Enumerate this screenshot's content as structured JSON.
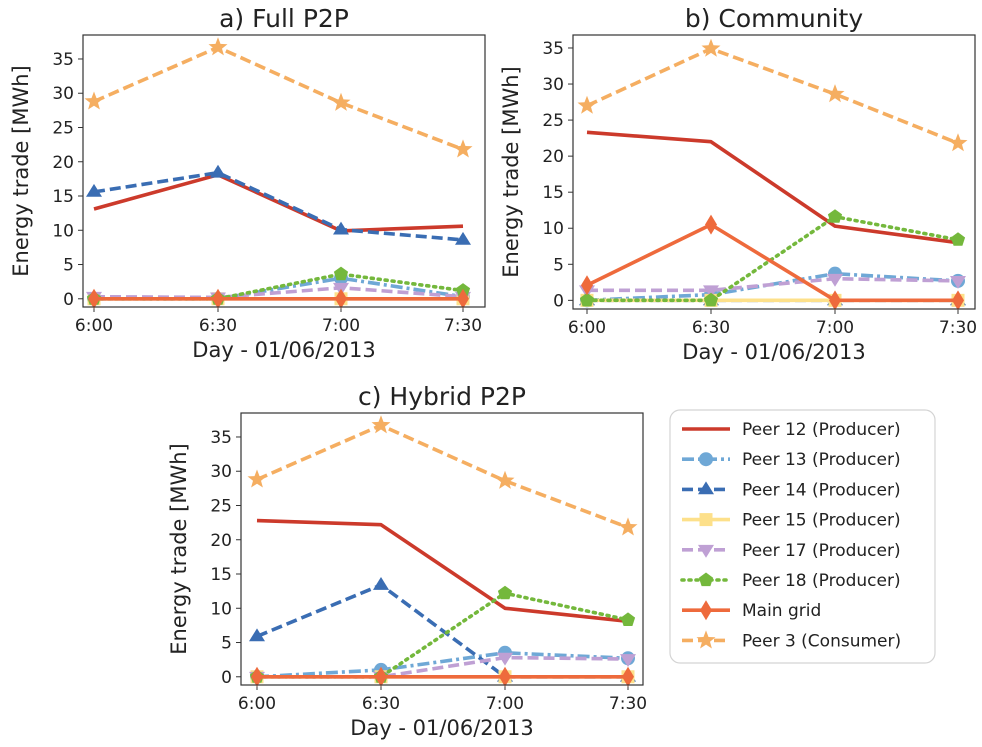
{
  "colors": {
    "peer12": "#cc3a2b",
    "peer13": "#6fa8d6",
    "peer14": "#3a6db3",
    "peer15": "#fde08a",
    "peer17": "#bfa0d4",
    "peer18": "#74b83c",
    "grid": "#ee6a3c",
    "peer3": "#f5ae61"
  },
  "legend": {
    "placement": "lower-right",
    "entries": [
      {
        "label": "Peer 12 (Producer)",
        "color": "#cc3a2b",
        "dash": "solid",
        "marker": "none"
      },
      {
        "label": "Peer 13 (Producer)",
        "color": "#6fa8d6",
        "dash": "dashdot",
        "marker": "circle"
      },
      {
        "label": "Peer 14 (Producer)",
        "color": "#3a6db3",
        "dash": "dashed",
        "marker": "triangle-up"
      },
      {
        "label": "Peer 15 (Producer)",
        "color": "#fde08a",
        "dash": "solid",
        "marker": "square"
      },
      {
        "label": "Peer 17 (Producer)",
        "color": "#bfa0d4",
        "dash": "dashed",
        "marker": "triangle-down"
      },
      {
        "label": "Peer 18 (Producer)",
        "color": "#74b83c",
        "dash": "dotted",
        "marker": "pentagon"
      },
      {
        "label": "Main grid",
        "color": "#ee6a3c",
        "dash": "solid",
        "marker": "thin-diamond"
      },
      {
        "label": "Peer 3 (Consumer)",
        "color": "#f5ae61",
        "dash": "dashed",
        "marker": "star"
      }
    ]
  },
  "chart_data": [
    {
      "type": "line",
      "title": "a) Full P2P",
      "xlabel": "Day - 01/06/2013",
      "ylabel": "Energy trade [MWh]",
      "categories": [
        "6:00",
        "6:30",
        "7:00",
        "7:30"
      ],
      "ylim": [
        -1.2,
        38.5
      ],
      "yticks": [
        0,
        5,
        10,
        15,
        20,
        25,
        30,
        35
      ],
      "series": [
        {
          "name": "Peer 12 (Producer)",
          "values": [
            13.1,
            18.1,
            9.9,
            10.6
          ]
        },
        {
          "name": "Peer 13 (Producer)",
          "values": [
            0,
            0,
            3.0,
            0.3
          ]
        },
        {
          "name": "Peer 14 (Producer)",
          "values": [
            15.6,
            18.4,
            10.1,
            8.6
          ]
        },
        {
          "name": "Peer 15 (Producer)",
          "values": [
            0,
            0,
            0,
            0
          ]
        },
        {
          "name": "Peer 17 (Producer)",
          "values": [
            0.3,
            0.2,
            1.6,
            0.3
          ]
        },
        {
          "name": "Peer 18 (Producer)",
          "values": [
            0,
            0,
            3.6,
            1.2
          ]
        },
        {
          "name": "Main grid",
          "values": [
            0,
            0,
            0,
            0
          ]
        },
        {
          "name": "Peer 3 (Consumer)",
          "values": [
            28.8,
            36.7,
            28.6,
            21.8
          ]
        }
      ]
    },
    {
      "type": "line",
      "title": "b) Community",
      "xlabel": "Day - 01/06/2013",
      "ylabel": "Energy trade [MWh]",
      "categories": [
        "6:00",
        "6:30",
        "7:00",
        "7:30"
      ],
      "ylim": [
        -1.2,
        36.8
      ],
      "yticks": [
        0,
        5,
        10,
        15,
        20,
        25,
        30,
        35
      ],
      "series": [
        {
          "name": "Peer 12 (Producer)",
          "values": [
            23.3,
            22.0,
            10.3,
            8.0
          ]
        },
        {
          "name": "Peer 13 (Producer)",
          "values": [
            0,
            0.8,
            3.7,
            2.7
          ]
        },
        {
          "name": "Peer 14 (Producer)",
          "values": [
            0,
            0,
            0,
            0
          ]
        },
        {
          "name": "Peer 15 (Producer)",
          "values": [
            0,
            0,
            0,
            0
          ]
        },
        {
          "name": "Peer 17 (Producer)",
          "values": [
            1.4,
            1.4,
            3.0,
            2.7
          ]
        },
        {
          "name": "Peer 18 (Producer)",
          "values": [
            0,
            0,
            11.6,
            8.4
          ]
        },
        {
          "name": "Main grid",
          "values": [
            2.1,
            10.5,
            0,
            0
          ]
        },
        {
          "name": "Peer 3 (Consumer)",
          "values": [
            27.0,
            34.9,
            28.6,
            21.8
          ]
        }
      ]
    },
    {
      "type": "line",
      "title": "c) Hybrid P2P",
      "xlabel": "Day - 01/06/2013",
      "ylabel": "Energy trade [MWh]",
      "categories": [
        "6:00",
        "6:30",
        "7:00",
        "7:30"
      ],
      "ylim": [
        -1.2,
        38.5
      ],
      "yticks": [
        0,
        5,
        10,
        15,
        20,
        25,
        30,
        35
      ],
      "series": [
        {
          "name": "Peer 12 (Producer)",
          "values": [
            22.8,
            22.2,
            10.0,
            8.1
          ]
        },
        {
          "name": "Peer 13 (Producer)",
          "values": [
            0,
            1.0,
            3.5,
            2.7
          ]
        },
        {
          "name": "Peer 14 (Producer)",
          "values": [
            5.9,
            13.4,
            0,
            0
          ]
        },
        {
          "name": "Peer 15 (Producer)",
          "values": [
            0,
            0,
            0,
            0
          ]
        },
        {
          "name": "Peer 17 (Producer)",
          "values": [
            0,
            0,
            2.8,
            2.6
          ]
        },
        {
          "name": "Peer 18 (Producer)",
          "values": [
            0,
            0,
            12.2,
            8.3
          ]
        },
        {
          "name": "Main grid",
          "values": [
            0,
            0,
            0,
            0
          ]
        },
        {
          "name": "Peer 3 (Consumer)",
          "values": [
            28.8,
            36.7,
            28.6,
            21.8
          ]
        }
      ]
    }
  ]
}
